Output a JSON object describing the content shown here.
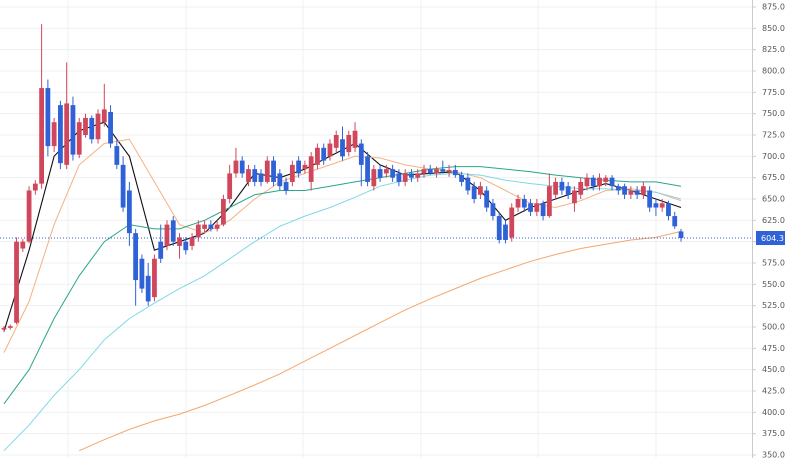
{
  "chart_data": {
    "type": "candlestick",
    "up_color": "#d0475c",
    "down_color": "#2f62d6",
    "open": [
      497,
      499,
      505,
      592,
      600,
      660,
      668,
      780,
      712,
      760,
      690,
      760,
      702,
      725,
      745,
      720,
      740,
      752,
      712,
      690,
      660,
      610,
      580,
      560,
      535,
      600,
      595,
      625,
      595,
      600,
      595,
      605,
      615,
      620,
      615,
      620,
      650,
      680,
      695,
      670,
      685,
      680,
      670,
      695,
      680,
      670,
      670,
      695,
      685,
      670,
      690,
      710,
      700,
      710,
      720,
      705,
      710,
      715,
      700,
      665,
      685,
      680,
      685,
      680,
      670,
      680,
      675,
      680,
      685,
      680,
      685,
      682,
      684,
      678,
      675,
      665,
      655,
      660,
      645,
      630,
      620,
      605,
      640,
      650,
      645,
      635,
      645,
      630,
      655,
      670,
      665,
      645,
      655,
      665,
      675,
      665,
      670,
      675,
      665,
      665,
      655,
      660,
      655,
      660,
      645,
      640,
      645,
      630,
      612
    ],
    "high": [
      501,
      503,
      605,
      603,
      665,
      672,
      855,
      790,
      745,
      765,
      810,
      770,
      745,
      750,
      748,
      755,
      785,
      760,
      720,
      700,
      670,
      615,
      585,
      575,
      585,
      620,
      625,
      630,
      610,
      605,
      610,
      625,
      625,
      625,
      625,
      655,
      690,
      710,
      700,
      690,
      690,
      685,
      700,
      700,
      685,
      675,
      695,
      700,
      695,
      705,
      715,
      715,
      720,
      730,
      735,
      730,
      740,
      720,
      705,
      690,
      690,
      690,
      690,
      685,
      685,
      685,
      685,
      690,
      690,
      688,
      695,
      690,
      690,
      682,
      680,
      670,
      670,
      665,
      650,
      635,
      625,
      645,
      655,
      655,
      650,
      650,
      648,
      680,
      675,
      675,
      670,
      665,
      675,
      680,
      678,
      680,
      678,
      678,
      668,
      668,
      665,
      665,
      670,
      665,
      650,
      650,
      648,
      635,
      615
    ],
    "low": [
      494,
      497,
      503,
      588,
      598,
      655,
      662,
      700,
      705,
      685,
      685,
      695,
      698,
      722,
      715,
      715,
      735,
      710,
      685,
      635,
      595,
      525,
      540,
      525,
      530,
      575,
      590,
      595,
      580,
      585,
      590,
      600,
      610,
      612,
      612,
      618,
      645,
      675,
      675,
      665,
      665,
      665,
      668,
      665,
      660,
      655,
      665,
      675,
      680,
      660,
      685,
      690,
      695,
      705,
      695,
      700,
      705,
      665,
      665,
      660,
      670,
      675,
      670,
      665,
      665,
      670,
      670,
      675,
      678,
      675,
      680,
      676,
      675,
      665,
      655,
      645,
      650,
      635,
      625,
      598,
      598,
      600,
      635,
      635,
      630,
      630,
      625,
      628,
      650,
      655,
      650,
      635,
      650,
      660,
      660,
      660,
      665,
      660,
      655,
      650,
      650,
      650,
      650,
      635,
      630,
      635,
      625,
      615,
      600
    ],
    "close": [
      499,
      501,
      600,
      600,
      660,
      668,
      780,
      712,
      740,
      692,
      762,
      702,
      740,
      745,
      720,
      750,
      755,
      715,
      690,
      640,
      610,
      555,
      545,
      530,
      580,
      580,
      620,
      600,
      605,
      590,
      605,
      620,
      620,
      615,
      620,
      650,
      680,
      695,
      680,
      685,
      670,
      670,
      695,
      670,
      665,
      660,
      690,
      680,
      690,
      700,
      710,
      695,
      715,
      725,
      700,
      725,
      730,
      690,
      670,
      685,
      675,
      685,
      675,
      670,
      680,
      675,
      680,
      685,
      680,
      685,
      682,
      684,
      678,
      670,
      660,
      650,
      665,
      640,
      630,
      602,
      602,
      640,
      650,
      640,
      635,
      645,
      630,
      665,
      670,
      660,
      655,
      660,
      670,
      675,
      665,
      675,
      675,
      665,
      660,
      655,
      660,
      655,
      665,
      640,
      640,
      645,
      630,
      618,
      604.3
    ],
    "series": [
      {
        "color": "#111111",
        "values": [
          495,
          590,
          700,
          730,
          740,
          700,
          590,
          600,
          610,
          640,
          680,
          675,
          685,
          700,
          715,
          690,
          678,
          680,
          682,
          660,
          625,
          640,
          650,
          660,
          668,
          660,
          650,
          640
        ]
      },
      {
        "color": "#f4b183",
        "values": [
          470,
          530,
          620,
          690,
          715,
          720,
          670,
          620,
          610,
          625,
          650,
          670,
          680,
          690,
          700,
          698,
          690,
          685,
          682,
          675,
          660,
          645,
          640,
          648,
          660,
          662,
          658,
          648
        ]
      },
      {
        "color": "#2aa58a",
        "values": [
          410,
          450,
          510,
          560,
          600,
          620,
          615,
          615,
          625,
          640,
          655,
          660,
          660,
          665,
          670,
          675,
          680,
          685,
          688,
          688,
          685,
          682,
          678,
          675,
          672,
          670,
          670,
          665
        ]
      },
      {
        "color": "#7fd8e6",
        "values": [
          355,
          385,
          420,
          450,
          485,
          510,
          528,
          545,
          560,
          580,
          600,
          618,
          630,
          640,
          652,
          665,
          672,
          678,
          680,
          678,
          672,
          668,
          665,
          662,
          662,
          660,
          658,
          650
        ]
      },
      {
        "color": "#f5a66e",
        "values": [
          null,
          null,
          null,
          355,
          368,
          380,
          390,
          398,
          408,
          420,
          432,
          445,
          460,
          475,
          490,
          505,
          520,
          533,
          545,
          557,
          567,
          577,
          585,
          592,
          597,
          602,
          605,
          612
        ]
      }
    ],
    "ylim": [
      346.5,
      883.2
    ],
    "yticks": [
      {
        "value": 350,
        "label": "350.0"
      },
      {
        "value": 375,
        "label": "375.0"
      },
      {
        "value": 400,
        "label": "400.0"
      },
      {
        "value": 425,
        "label": "425.0"
      },
      {
        "value": 450,
        "label": "450.0"
      },
      {
        "value": 475,
        "label": "475.0"
      },
      {
        "value": 500,
        "label": "500.0"
      },
      {
        "value": 525,
        "label": "525.0"
      },
      {
        "value": 550,
        "label": "550.0"
      },
      {
        "value": 575,
        "label": "575.0"
      },
      {
        "value": 600,
        "label": "600.0"
      },
      {
        "value": 625,
        "label": "625.0"
      },
      {
        "value": 650,
        "label": "650.0"
      },
      {
        "value": 675,
        "label": "675.0"
      },
      {
        "value": 700,
        "label": "700.0"
      },
      {
        "value": 725,
        "label": "725.0"
      },
      {
        "value": 750,
        "label": "750.0"
      },
      {
        "value": 775,
        "label": "775.0"
      },
      {
        "value": 800,
        "label": "800.0"
      },
      {
        "value": 825,
        "label": "825.0"
      },
      {
        "value": 850,
        "label": "850.0"
      },
      {
        "value": 875,
        "label": "875.0"
      }
    ],
    "grid": true,
    "last_price_color": "#2f62d6"
  }
}
